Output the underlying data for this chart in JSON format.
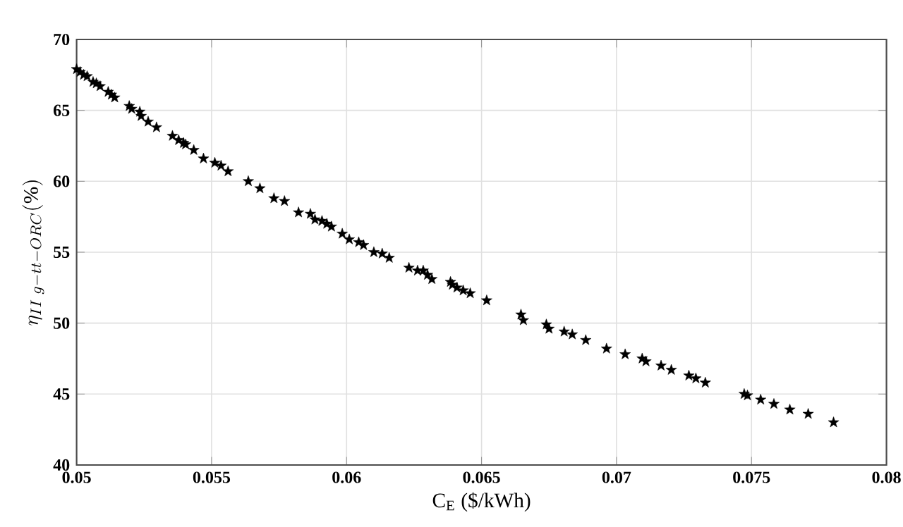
{
  "chart_data": {
    "type": "scatter",
    "xlabel": "C$_{E}$ ($/kWh)",
    "ylabel": "\\eta_{II\\ g-tt-ORC}(\\%)",
    "xlim": [
      0.05,
      0.08
    ],
    "ylim": [
      40,
      70
    ],
    "xticks": [
      0.05,
      0.055,
      0.06,
      0.065,
      0.07,
      0.075,
      0.08
    ],
    "yticks": [
      40,
      45,
      50,
      55,
      60,
      65,
      70
    ],
    "grid": true,
    "marker": "star",
    "series": [
      {
        "color": "#000000",
        "x": [
          0.05,
          0.05013,
          0.05026,
          0.05039,
          0.05061,
          0.05073,
          0.05087,
          0.05117,
          0.05129,
          0.05141,
          0.05195,
          0.05204,
          0.05234,
          0.05239,
          0.05265,
          0.05296,
          0.05355,
          0.05378,
          0.05396,
          0.05404,
          0.05434,
          0.0547,
          0.05512,
          0.05535,
          0.05561,
          0.05636,
          0.05679,
          0.05731,
          0.0577,
          0.05822,
          0.05866,
          0.05883,
          0.05909,
          0.05927,
          0.05944,
          0.05984,
          0.0601,
          0.06045,
          0.06063,
          0.06101,
          0.06132,
          0.06158,
          0.06231,
          0.06263,
          0.06284,
          0.063,
          0.06316,
          0.06385,
          0.06392,
          0.06409,
          0.06432,
          0.06458,
          0.06519,
          0.06646,
          0.06655,
          0.0674,
          0.0675,
          0.06806,
          0.06836,
          0.06886,
          0.06963,
          0.07032,
          0.07095,
          0.07109,
          0.07165,
          0.07203,
          0.07268,
          0.07294,
          0.07329,
          0.07473,
          0.07485,
          0.07534,
          0.07583,
          0.07642,
          0.0771,
          0.07804
        ],
        "values": [
          67.9,
          67.7,
          67.5,
          67.4,
          67.0,
          66.9,
          66.7,
          66.3,
          66.1,
          65.9,
          65.3,
          65.1,
          64.9,
          64.6,
          64.2,
          63.8,
          63.2,
          62.9,
          62.7,
          62.6,
          62.2,
          61.6,
          61.3,
          61.1,
          60.7,
          60.0,
          59.5,
          58.8,
          58.6,
          57.8,
          57.7,
          57.3,
          57.2,
          57.0,
          56.8,
          56.3,
          55.9,
          55.7,
          55.5,
          55.0,
          54.9,
          54.6,
          53.9,
          53.7,
          53.7,
          53.4,
          53.1,
          52.9,
          52.7,
          52.5,
          52.3,
          52.1,
          51.6,
          50.6,
          50.2,
          49.9,
          49.6,
          49.4,
          49.2,
          48.8,
          48.2,
          47.8,
          47.5,
          47.3,
          47.0,
          46.7,
          46.3,
          46.1,
          45.8,
          45.0,
          44.9,
          44.6,
          44.3,
          43.9,
          43.6,
          43.0
        ]
      }
    ]
  }
}
